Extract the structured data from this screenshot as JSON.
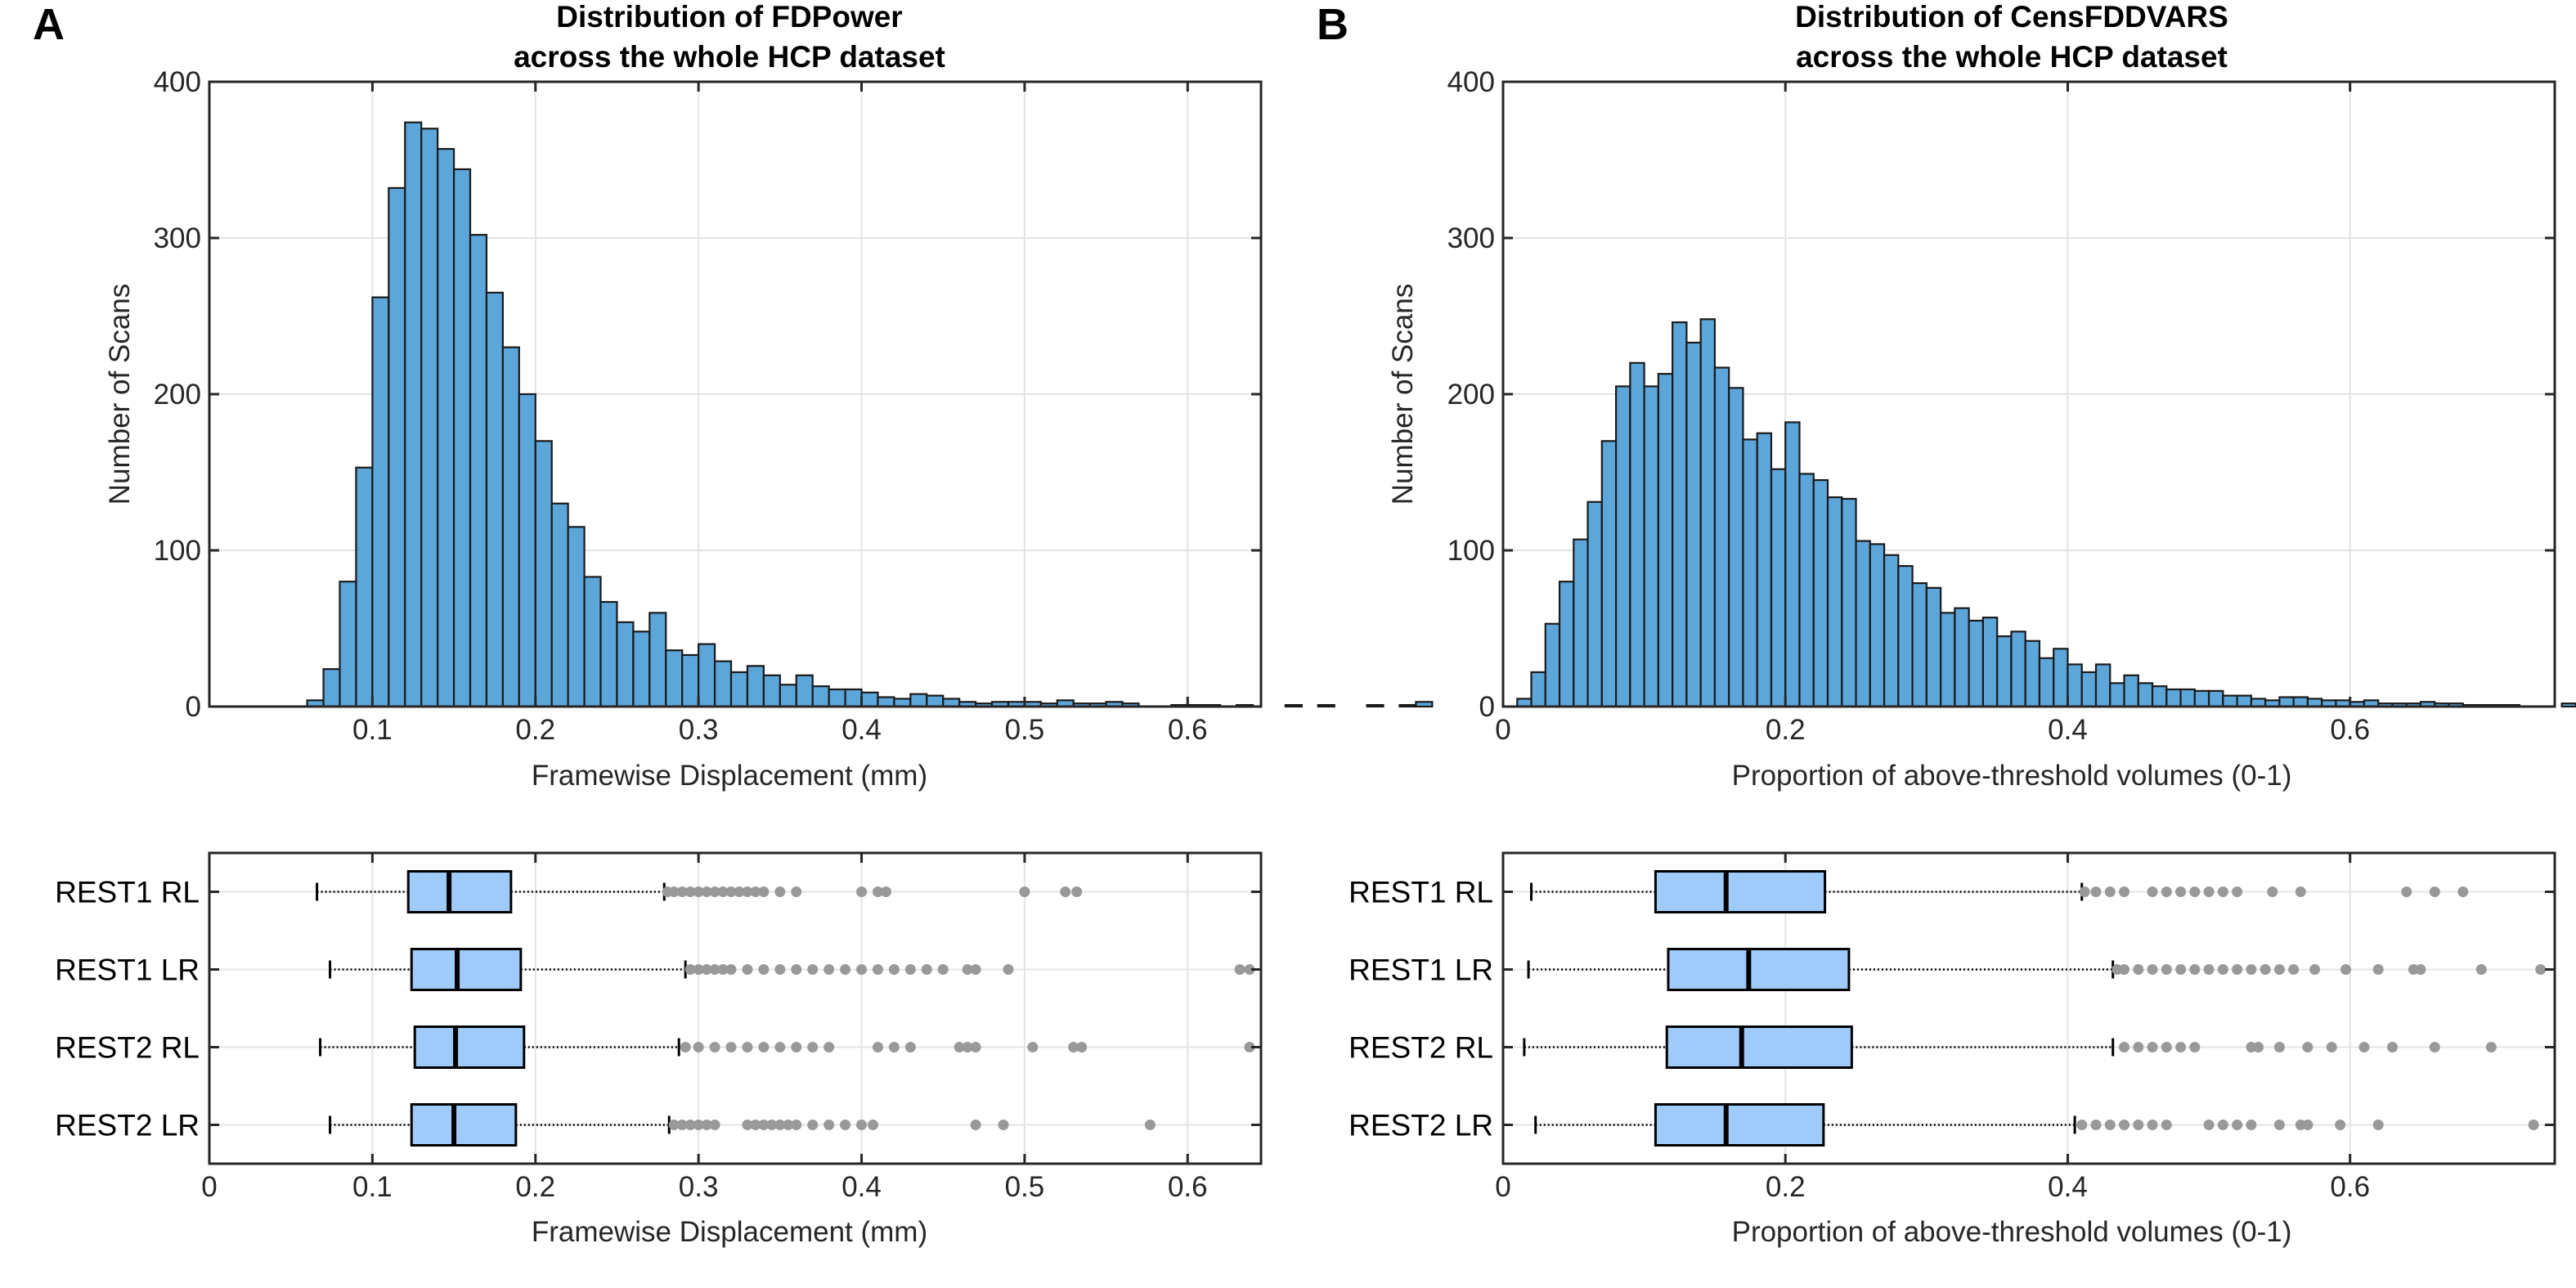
{
  "colors": {
    "bar": "#5da6da",
    "box": "#9fcbfb",
    "outlier": "#999999",
    "edge": "#1a1a1a"
  },
  "chart_data": [
    {
      "panel": "A",
      "type": "bar",
      "title_lines": [
        "Distribution of FDPower",
        "across the whole HCP dataset"
      ],
      "xlabel": "Framewise Displacement (mm)",
      "ylabel": "Number of Scans",
      "xlim": [
        0,
        0.645
      ],
      "ylim": [
        0,
        400
      ],
      "xticks": [
        0.1,
        0.2,
        0.3,
        0.4,
        0.5,
        0.6
      ],
      "yticks": [
        0,
        100,
        200,
        300,
        400
      ],
      "bin_start": 0.06,
      "bin_width": 0.01,
      "values": [
        4,
        24,
        80,
        153,
        262,
        332,
        374,
        370,
        357,
        344,
        302,
        265,
        230,
        200,
        170,
        130,
        115,
        83,
        67,
        54,
        48,
        60,
        36,
        33,
        40,
        29,
        22,
        26,
        20,
        14,
        20,
        13,
        11,
        11,
        9,
        6,
        5,
        8,
        7,
        5,
        3,
        2,
        3,
        3,
        3,
        2,
        4,
        2,
        2,
        3,
        2,
        0,
        0,
        1,
        1,
        1,
        0,
        1,
        0,
        0,
        1,
        0,
        1,
        0,
        0,
        1,
        0,
        1,
        3
      ],
      "box": {
        "xlabel": "Framewise Displacement (mm)",
        "xlim": [
          0,
          0.645
        ],
        "xticks": [
          0,
          0.1,
          0.2,
          0.3,
          0.4,
          0.5,
          0.6
        ],
        "categories": [
          "REST1 RL",
          "REST1 LR",
          "REST2 RL",
          "REST2 LR"
        ],
        "series": [
          {
            "name": "REST1 RL",
            "whisker_low": 0.066,
            "q1": 0.122,
            "median": 0.147,
            "q3": 0.185,
            "whisker_high": 0.279,
            "outliers": [
              0.281,
              0.285,
              0.29,
              0.295,
              0.3,
              0.305,
              0.31,
              0.315,
              0.32,
              0.325,
              0.33,
              0.335,
              0.34,
              0.35,
              0.36,
              0.4,
              0.41,
              0.415,
              0.5,
              0.525,
              0.532
            ]
          },
          {
            "name": "REST1 LR",
            "whisker_low": 0.074,
            "q1": 0.124,
            "median": 0.152,
            "q3": 0.191,
            "whisker_high": 0.292,
            "outliers": [
              0.295,
              0.3,
              0.305,
              0.31,
              0.315,
              0.32,
              0.33,
              0.34,
              0.35,
              0.36,
              0.37,
              0.38,
              0.39,
              0.4,
              0.41,
              0.42,
              0.43,
              0.44,
              0.45,
              0.465,
              0.47,
              0.49,
              0.632,
              0.638
            ]
          },
          {
            "name": "REST2 RL",
            "whisker_low": 0.068,
            "q1": 0.126,
            "median": 0.151,
            "q3": 0.193,
            "whisker_high": 0.288,
            "outliers": [
              0.292,
              0.3,
              0.31,
              0.32,
              0.33,
              0.34,
              0.35,
              0.36,
              0.37,
              0.38,
              0.41,
              0.42,
              0.43,
              0.46,
              0.465,
              0.47,
              0.505,
              0.53,
              0.535,
              0.638
            ]
          },
          {
            "name": "REST2 LR",
            "whisker_low": 0.074,
            "q1": 0.124,
            "median": 0.15,
            "q3": 0.188,
            "whisker_high": 0.282,
            "outliers": [
              0.285,
              0.29,
              0.295,
              0.3,
              0.305,
              0.31,
              0.33,
              0.335,
              0.34,
              0.345,
              0.35,
              0.355,
              0.36,
              0.37,
              0.38,
              0.39,
              0.4,
              0.407,
              0.47,
              0.487,
              0.577
            ]
          }
        ]
      }
    },
    {
      "panel": "B",
      "type": "bar",
      "title_lines": [
        "Distribution of CensFDDVARS",
        "across the whole HCP dataset"
      ],
      "xlabel": "Proportion of above-threshold volumes (0-1)",
      "ylabel": "Number of Scans",
      "xlim": [
        0,
        0.745
      ],
      "ylim": [
        0,
        400
      ],
      "xticks": [
        0,
        0.2,
        0.4,
        0.6
      ],
      "yticks": [
        0,
        100,
        200,
        300,
        400
      ],
      "bin_start": 0.01,
      "bin_width": 0.01,
      "values": [
        5,
        22,
        53,
        80,
        107,
        131,
        170,
        205,
        220,
        205,
        213,
        246,
        233,
        248,
        217,
        204,
        171,
        175,
        152,
        182,
        149,
        145,
        134,
        133,
        106,
        104,
        97,
        90,
        79,
        76,
        60,
        63,
        55,
        57,
        45,
        48,
        42,
        31,
        37,
        27,
        22,
        27,
        15,
        20,
        15,
        13,
        11,
        11,
        10,
        10,
        7,
        7,
        5,
        4,
        6,
        6,
        5,
        4,
        4,
        3,
        4,
        2,
        2,
        2,
        3,
        2,
        2,
        1,
        1,
        1,
        1,
        0,
        0,
        0,
        2
      ],
      "box": {
        "xlabel": "Proportion of above-threshold volumes (0-1)",
        "xlim": [
          0,
          0.745
        ],
        "xticks": [
          0,
          0.2,
          0.4,
          0.6
        ],
        "categories": [
          "REST1 RL",
          "REST1 LR",
          "REST2 RL",
          "REST2 LR"
        ],
        "series": [
          {
            "name": "REST1 RL",
            "whisker_low": 0.02,
            "q1": 0.108,
            "median": 0.158,
            "q3": 0.228,
            "whisker_high": 0.41,
            "outliers": [
              0.412,
              0.42,
              0.43,
              0.44,
              0.46,
              0.47,
              0.48,
              0.49,
              0.5,
              0.51,
              0.52,
              0.545,
              0.565,
              0.64,
              0.66,
              0.68
            ]
          },
          {
            "name": "REST1 LR",
            "whisker_low": 0.018,
            "q1": 0.117,
            "median": 0.174,
            "q3": 0.245,
            "whisker_high": 0.432,
            "outliers": [
              0.435,
              0.44,
              0.45,
              0.46,
              0.47,
              0.48,
              0.49,
              0.5,
              0.51,
              0.52,
              0.53,
              0.54,
              0.55,
              0.56,
              0.575,
              0.597,
              0.62,
              0.645,
              0.65,
              0.693,
              0.735
            ]
          },
          {
            "name": "REST2 RL",
            "whisker_low": 0.015,
            "q1": 0.116,
            "median": 0.169,
            "q3": 0.247,
            "whisker_high": 0.432,
            "outliers": [
              0.44,
              0.45,
              0.46,
              0.47,
              0.48,
              0.49,
              0.53,
              0.535,
              0.55,
              0.57,
              0.587,
              0.61,
              0.63,
              0.66,
              0.7
            ]
          },
          {
            "name": "REST2 LR",
            "whisker_low": 0.023,
            "q1": 0.108,
            "median": 0.158,
            "q3": 0.227,
            "whisker_high": 0.405,
            "outliers": [
              0.41,
              0.42,
              0.43,
              0.44,
              0.45,
              0.46,
              0.47,
              0.5,
              0.51,
              0.52,
              0.53,
              0.55,
              0.565,
              0.57,
              0.593,
              0.62,
              0.73
            ]
          }
        ]
      }
    }
  ]
}
